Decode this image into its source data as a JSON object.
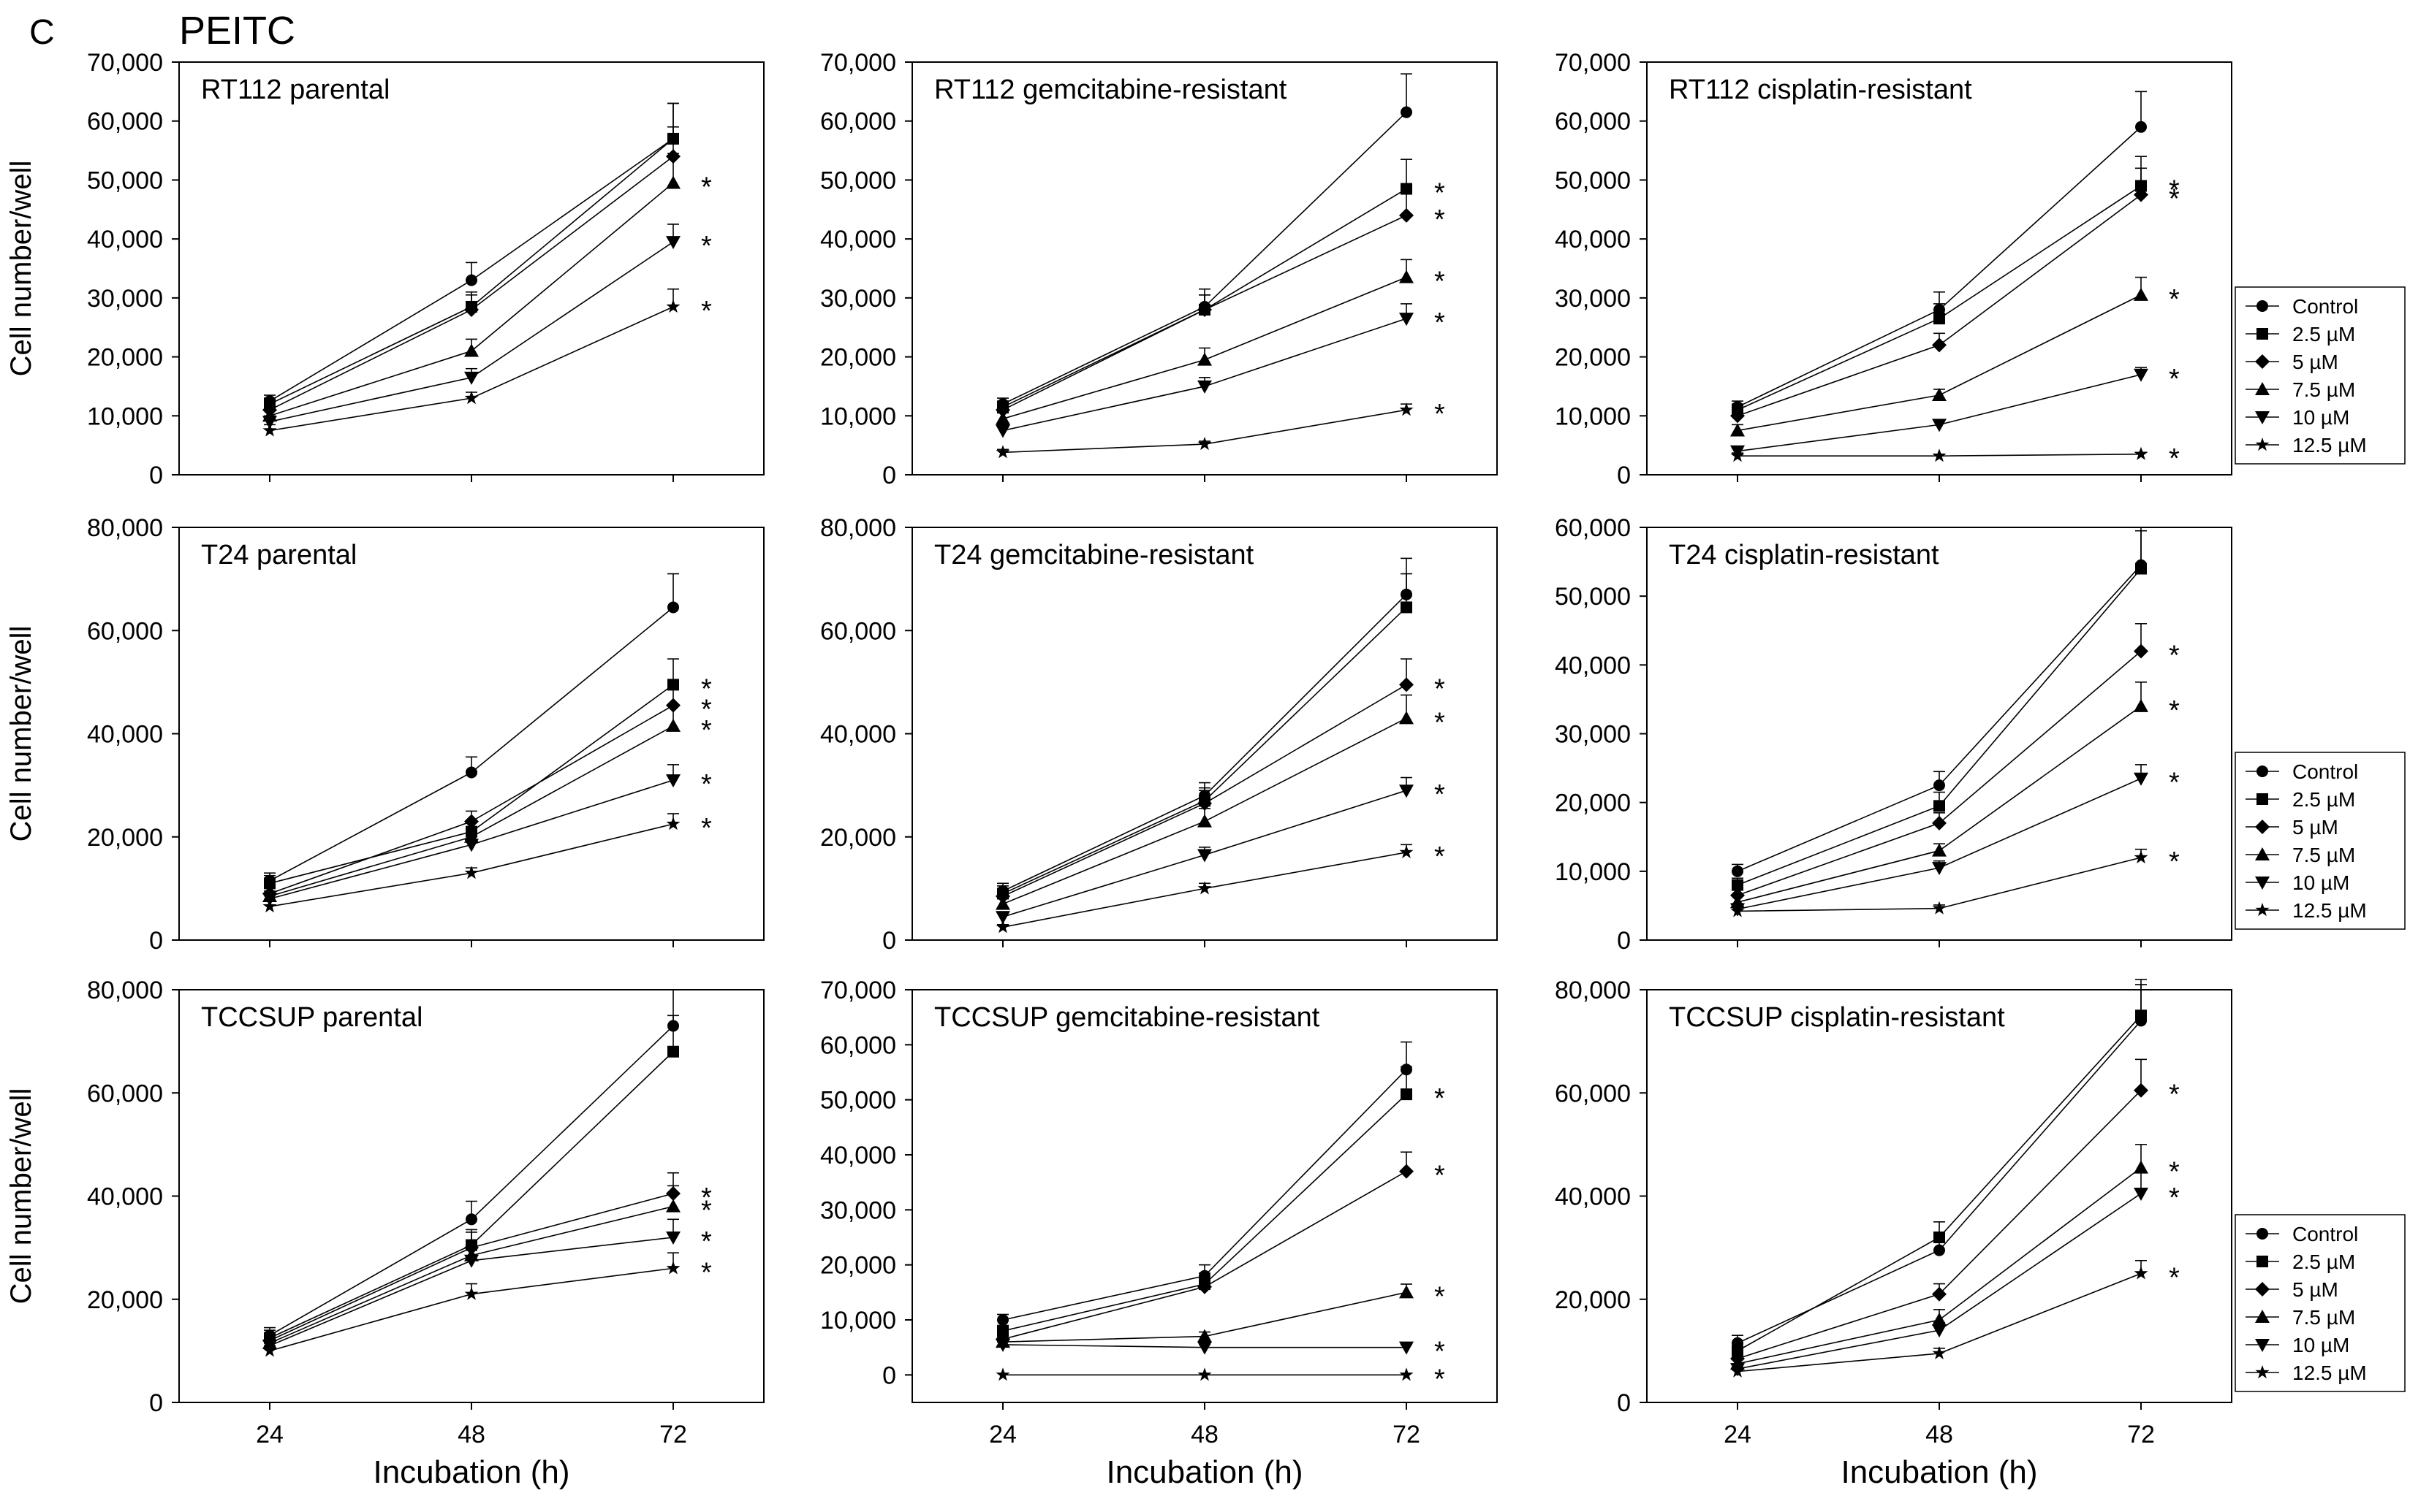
{
  "panel_letter": "C",
  "figure_title": "PEITC",
  "ylabel": "Cell number/well",
  "xlabel": "Incubation (h)",
  "legend": {
    "entries": [
      "Control",
      "2.5 µM",
      "5 µM",
      "7.5 µM",
      "10 µM",
      "12.5 µM"
    ],
    "markers": [
      "circle",
      "square",
      "diamond",
      "triangle-up",
      "triangle-down",
      "star"
    ]
  },
  "chart_data": [
    {
      "type": "line",
      "title": "RT112 parental",
      "x": [
        24,
        48,
        72
      ],
      "ylim": [
        0,
        70000
      ],
      "yticks": [
        0,
        10000,
        20000,
        30000,
        40000,
        50000,
        60000,
        70000
      ],
      "yticklabels": [
        "0",
        "10,000",
        "20,000",
        "30,000",
        "40,000",
        "50,000",
        "60,000",
        "70,000"
      ],
      "series": [
        {
          "name": "Control",
          "values": [
            12500,
            33000,
            57000
          ],
          "err": [
            1000,
            3000,
            6000
          ]
        },
        {
          "name": "2.5 µM",
          "values": [
            12000,
            28500,
            57000
          ],
          "err": [
            1000,
            2500,
            6000
          ]
        },
        {
          "name": "5 µM",
          "values": [
            11000,
            28000,
            54000
          ],
          "err": [
            1000,
            2500,
            5000
          ]
        },
        {
          "name": "7.5 µM",
          "values": [
            10000,
            21000,
            49500
          ],
          "err": [
            1000,
            2000,
            5000
          ]
        },
        {
          "name": "10 µM",
          "values": [
            9000,
            16500,
            39500
          ],
          "err": [
            1000,
            1500,
            3000
          ]
        },
        {
          "name": "12.5 µM",
          "values": [
            7500,
            13000,
            28500
          ],
          "err": [
            1000,
            1000,
            3000
          ]
        }
      ],
      "asterisks": [
        49500,
        39500,
        28500
      ]
    },
    {
      "type": "line",
      "title": "RT112 gemcitabine-resistant",
      "x": [
        24,
        48,
        72
      ],
      "ylim": [
        0,
        70000
      ],
      "yticks": [
        0,
        10000,
        20000,
        30000,
        40000,
        50000,
        60000,
        70000
      ],
      "yticklabels": [
        "0",
        "10,000",
        "20,000",
        "30,000",
        "40,000",
        "50,000",
        "60,000",
        "70,000"
      ],
      "series": [
        {
          "name": "Control",
          "values": [
            12000,
            28500,
            61500
          ],
          "err": [
            1000,
            3000,
            6500
          ]
        },
        {
          "name": "2.5 µM",
          "values": [
            11500,
            28000,
            48500
          ],
          "err": [
            1000,
            2500,
            5000
          ]
        },
        {
          "name": "5 µM",
          "values": [
            11000,
            28000,
            44000
          ],
          "err": [
            1000,
            2500,
            4500
          ]
        },
        {
          "name": "7.5 µM",
          "values": [
            9500,
            19500,
            33500
          ],
          "err": [
            1000,
            2000,
            3000
          ]
        },
        {
          "name": "10 µM",
          "values": [
            7500,
            15000,
            26500
          ],
          "err": [
            1000,
            1500,
            2500
          ]
        },
        {
          "name": "12.5 µM",
          "values": [
            3800,
            5200,
            11000
          ],
          "err": [
            500,
            500,
            1000
          ]
        }
      ],
      "asterisks": [
        48500,
        44000,
        33500,
        26500,
        11000
      ]
    },
    {
      "type": "line",
      "title": "RT112 cisplatin-resistant",
      "x": [
        24,
        48,
        72
      ],
      "ylim": [
        0,
        70000
      ],
      "yticks": [
        0,
        10000,
        20000,
        30000,
        40000,
        50000,
        60000,
        70000
      ],
      "yticklabels": [
        "0",
        "10,000",
        "20,000",
        "30,000",
        "40,000",
        "50,000",
        "60,000",
        "70,000"
      ],
      "series": [
        {
          "name": "Control",
          "values": [
            11500,
            28000,
            59000
          ],
          "err": [
            1000,
            3000,
            6000
          ]
        },
        {
          "name": "2.5 µM",
          "values": [
            11000,
            26500,
            49000
          ],
          "err": [
            1000,
            2500,
            5000
          ]
        },
        {
          "name": "5 µM",
          "values": [
            10000,
            22000,
            47500
          ],
          "err": [
            1000,
            2000,
            4500
          ]
        },
        {
          "name": "7.5 µM",
          "values": [
            7500,
            13500,
            30500
          ],
          "err": [
            1000,
            1000,
            3000
          ]
        },
        {
          "name": "10 µM",
          "values": [
            4000,
            8500,
            17000
          ],
          "err": [
            500,
            800,
            1200
          ]
        },
        {
          "name": "12.5 µM",
          "values": [
            3200,
            3200,
            3500
          ],
          "err": [
            500,
            300,
            300
          ]
        }
      ],
      "asterisks": [
        49000,
        47500,
        30500,
        17000,
        3500
      ]
    },
    {
      "type": "line",
      "title": "T24 parental",
      "x": [
        24,
        48,
        72
      ],
      "ylim": [
        0,
        80000
      ],
      "yticks": [
        0,
        20000,
        40000,
        60000,
        80000
      ],
      "yticklabels": [
        "0",
        "20,000",
        "40,000",
        "60,000",
        "80,000"
      ],
      "series": [
        {
          "name": "Control",
          "values": [
            11500,
            32500,
            64500
          ],
          "err": [
            1500,
            3000,
            6500
          ]
        },
        {
          "name": "2.5 µM",
          "values": [
            11000,
            21000,
            49500
          ],
          "err": [
            1500,
            2000,
            5000
          ]
        },
        {
          "name": "5 µM",
          "values": [
            9000,
            23000,
            45500
          ],
          "err": [
            1000,
            2000,
            4500
          ]
        },
        {
          "name": "7.5 µM",
          "values": [
            8500,
            20000,
            41500
          ],
          "err": [
            1000,
            2000,
            4000
          ]
        },
        {
          "name": "10 µM",
          "values": [
            8000,
            18500,
            31000
          ],
          "err": [
            1000,
            2000,
            3000
          ]
        },
        {
          "name": "12.5 µM",
          "values": [
            6500,
            13000,
            22500
          ],
          "err": [
            1000,
            1000,
            2000
          ]
        }
      ],
      "asterisks": [
        49500,
        45500,
        41500,
        31000,
        22500
      ]
    },
    {
      "type": "line",
      "title": "T24 gemcitabine-resistant",
      "x": [
        24,
        48,
        72
      ],
      "ylim": [
        0,
        80000
      ],
      "yticks": [
        0,
        20000,
        40000,
        60000,
        80000
      ],
      "yticklabels": [
        "0",
        "20,000",
        "40,000",
        "60,000",
        "80,000"
      ],
      "series": [
        {
          "name": "Control",
          "values": [
            9500,
            28000,
            67000
          ],
          "err": [
            1500,
            2500,
            7000
          ]
        },
        {
          "name": "2.5 µM",
          "values": [
            9000,
            27000,
            64500
          ],
          "err": [
            1500,
            2500,
            6500
          ]
        },
        {
          "name": "5 µM",
          "values": [
            8500,
            26500,
            49500
          ],
          "err": [
            1000,
            2500,
            5000
          ]
        },
        {
          "name": "7.5 µM",
          "values": [
            7000,
            23000,
            43000
          ],
          "err": [
            1000,
            2500,
            4500
          ]
        },
        {
          "name": "10 µM",
          "values": [
            4500,
            16500,
            29000
          ],
          "err": [
            1000,
            1500,
            2500
          ]
        },
        {
          "name": "12.5 µM",
          "values": [
            2500,
            10000,
            17000
          ],
          "err": [
            500,
            1000,
            1500
          ]
        }
      ],
      "asterisks": [
        49500,
        43000,
        29000,
        17000
      ]
    },
    {
      "type": "line",
      "title": "T24 cisplatin-resistant",
      "x": [
        24,
        48,
        72
      ],
      "ylim": [
        0,
        60000
      ],
      "yticks": [
        0,
        10000,
        20000,
        30000,
        40000,
        50000,
        60000
      ],
      "yticklabels": [
        "0",
        "10,000",
        "20,000",
        "30,000",
        "40,000",
        "50,000",
        "60,000"
      ],
      "series": [
        {
          "name": "Control",
          "values": [
            10000,
            22500,
            54500
          ],
          "err": [
            1000,
            2000,
            5500
          ]
        },
        {
          "name": "2.5 µM",
          "values": [
            8000,
            19500,
            54000
          ],
          "err": [
            1000,
            2000,
            5500
          ]
        },
        {
          "name": "5 µM",
          "values": [
            6500,
            17000,
            42000
          ],
          "err": [
            1000,
            1500,
            4000
          ]
        },
        {
          "name": "7.5 µM",
          "values": [
            5500,
            13000,
            34000
          ],
          "err": [
            1000,
            1000,
            3500
          ]
        },
        {
          "name": "10 µM",
          "values": [
            4500,
            10500,
            23500
          ],
          "err": [
            800,
            1000,
            2000
          ]
        },
        {
          "name": "12.5 µM",
          "values": [
            4200,
            4600,
            12000
          ],
          "err": [
            500,
            500,
            1200
          ]
        }
      ],
      "asterisks": [
        42000,
        34000,
        23500,
        12000
      ]
    },
    {
      "type": "line",
      "title": "TCCSUP parental",
      "x": [
        24,
        48,
        72
      ],
      "ylim": [
        0,
        80000
      ],
      "yticks": [
        0,
        20000,
        40000,
        60000,
        80000
      ],
      "yticklabels": [
        "0",
        "20,000",
        "40,000",
        "60,000",
        "80,000"
      ],
      "series": [
        {
          "name": "Control",
          "values": [
            13000,
            35500,
            73000
          ],
          "err": [
            1500,
            3500,
            7000
          ]
        },
        {
          "name": "2.5 µM",
          "values": [
            12500,
            30500,
            68000
          ],
          "err": [
            1500,
            3000,
            7000
          ]
        },
        {
          "name": "5 µM",
          "values": [
            12000,
            30000,
            40500
          ],
          "err": [
            1500,
            3000,
            4000
          ]
        },
        {
          "name": "7.5 µM",
          "values": [
            11500,
            28500,
            38000
          ],
          "err": [
            1500,
            3000,
            4000
          ]
        },
        {
          "name": "10 µM",
          "values": [
            11000,
            27500,
            32000
          ],
          "err": [
            1500,
            2500,
            3500
          ]
        },
        {
          "name": "12.5 µM",
          "values": [
            10000,
            21000,
            26000
          ],
          "err": [
            1000,
            2000,
            3000
          ]
        }
      ],
      "asterisks": [
        40500,
        38000,
        32000,
        26000
      ]
    },
    {
      "type": "line",
      "title": "TCCSUP gemcitabine-resistant",
      "x": [
        24,
        48,
        72
      ],
      "ylim": [
        -5000,
        70000
      ],
      "yticks": [
        0,
        10000,
        20000,
        30000,
        40000,
        50000,
        60000,
        70000
      ],
      "yticklabels": [
        "0",
        "10,000",
        "20,000",
        "30,000",
        "40,000",
        "50,000",
        "60,000",
        "70,000"
      ],
      "series": [
        {
          "name": "Control",
          "values": [
            10000,
            18000,
            55500
          ],
          "err": [
            1000,
            2000,
            5000
          ]
        },
        {
          "name": "2.5 µM",
          "values": [
            8000,
            16500,
            51000
          ],
          "err": [
            1000,
            2000,
            5000
          ]
        },
        {
          "name": "5 µM",
          "values": [
            6500,
            16000,
            37000
          ],
          "err": [
            1000,
            1500,
            3500
          ]
        },
        {
          "name": "7.5 µM",
          "values": [
            6000,
            7000,
            15000
          ],
          "err": [
            800,
            800,
            1500
          ]
        },
        {
          "name": "10 µM",
          "values": [
            5500,
            5000,
            5000
          ],
          "err": [
            500,
            500,
            500
          ]
        },
        {
          "name": "12.5 µM",
          "values": [
            0,
            0,
            0
          ],
          "err": [
            0,
            0,
            0
          ]
        }
      ],
      "asterisks": [
        51000,
        37000,
        15000,
        5000,
        0
      ]
    },
    {
      "type": "line",
      "title": "TCCSUP cisplatin-resistant",
      "x": [
        24,
        48,
        72
      ],
      "ylim": [
        0,
        80000
      ],
      "yticks": [
        0,
        20000,
        40000,
        60000,
        80000
      ],
      "yticklabels": [
        "0",
        "20,000",
        "40,000",
        "60,000",
        "80,000"
      ],
      "series": [
        {
          "name": "Control",
          "values": [
            11500,
            29500,
            74000
          ],
          "err": [
            1500,
            3000,
            7000
          ]
        },
        {
          "name": "2.5 µM",
          "values": [
            10000,
            32000,
            75000
          ],
          "err": [
            1500,
            3000,
            7000
          ]
        },
        {
          "name": "5 µM",
          "values": [
            8500,
            21000,
            60500
          ],
          "err": [
            1000,
            2000,
            6000
          ]
        },
        {
          "name": "7.5 µM",
          "values": [
            7500,
            16000,
            45500
          ],
          "err": [
            1000,
            2000,
            4500
          ]
        },
        {
          "name": "10 µM",
          "values": [
            6500,
            14000,
            40500
          ],
          "err": [
            1000,
            1500,
            4000
          ]
        },
        {
          "name": "12.5 µM",
          "values": [
            6000,
            9500,
            25000
          ],
          "err": [
            800,
            1000,
            2500
          ]
        }
      ],
      "asterisks": [
        60500,
        45500,
        40500,
        25000
      ]
    }
  ]
}
